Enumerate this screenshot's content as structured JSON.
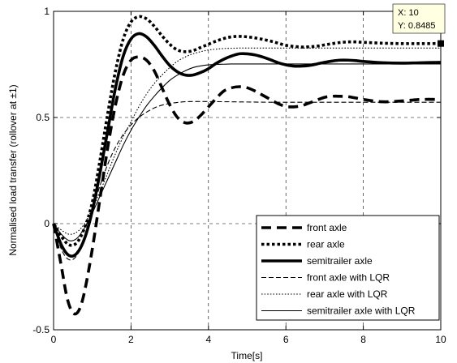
{
  "chart_data": {
    "type": "line",
    "title": "",
    "xlabel": "Time[s]",
    "ylabel": "Normalised load transfer (rollover at ±1)",
    "xlim": [
      0,
      10
    ],
    "ylim": [
      -0.5,
      1
    ],
    "xticks": [
      0,
      2,
      4,
      6,
      8,
      10
    ],
    "yticks": [
      -0.5,
      0,
      0.5,
      1
    ],
    "xtick_labels": [
      "0",
      "2",
      "4",
      "6",
      "8",
      "10"
    ],
    "ytick_labels": [
      "-0.5",
      "0",
      "0.5",
      "1"
    ],
    "grid": true,
    "legend_position": "bottom-right",
    "series": [
      {
        "name": "front axle",
        "style": "dashed",
        "weight": "thick",
        "color": "#000000",
        "x": [
          0,
          0.2,
          0.35,
          0.5,
          0.65,
          0.8,
          1.0,
          1.2,
          1.4,
          1.6,
          1.8,
          2.0,
          2.2,
          2.4,
          2.6,
          2.8,
          3.0,
          3.2,
          3.4,
          3.6,
          3.8,
          4.0,
          4.2,
          4.4,
          4.6,
          4.8,
          5.0,
          5.2,
          5.4,
          5.6,
          5.8,
          6.0,
          6.2,
          6.4,
          6.6,
          6.8,
          7.0,
          7.2,
          7.4,
          7.6,
          7.8,
          8.0,
          8.5,
          9.0,
          9.5,
          10.0
        ],
        "y": [
          0,
          -0.2,
          -0.35,
          -0.42,
          -0.41,
          -0.32,
          -0.12,
          0.12,
          0.36,
          0.56,
          0.7,
          0.77,
          0.785,
          0.77,
          0.72,
          0.64,
          0.56,
          0.5,
          0.475,
          0.48,
          0.51,
          0.55,
          0.59,
          0.625,
          0.64,
          0.645,
          0.64,
          0.625,
          0.605,
          0.585,
          0.565,
          0.552,
          0.55,
          0.555,
          0.568,
          0.582,
          0.595,
          0.6,
          0.6,
          0.598,
          0.592,
          0.585,
          0.574,
          0.578,
          0.585,
          0.585
        ]
      },
      {
        "name": "rear axle",
        "style": "dotted",
        "weight": "thick",
        "color": "#000000",
        "x": [
          0,
          0.2,
          0.4,
          0.6,
          0.8,
          1.0,
          1.2,
          1.4,
          1.6,
          1.8,
          2.0,
          2.2,
          2.4,
          2.6,
          2.8,
          3.0,
          3.2,
          3.4,
          3.6,
          3.8,
          4.0,
          4.2,
          4.4,
          4.6,
          4.8,
          5.0,
          5.2,
          5.4,
          5.6,
          5.8,
          6.0,
          6.2,
          6.4,
          6.6,
          6.8,
          7.0,
          7.2,
          7.4,
          7.6,
          7.8,
          8.0,
          8.5,
          9.0,
          9.5,
          10.0
        ],
        "y": [
          0,
          -0.06,
          -0.1,
          -0.09,
          -0.02,
          0.1,
          0.3,
          0.52,
          0.72,
          0.87,
          0.95,
          0.975,
          0.965,
          0.93,
          0.885,
          0.845,
          0.818,
          0.81,
          0.815,
          0.83,
          0.845,
          0.86,
          0.872,
          0.88,
          0.882,
          0.88,
          0.875,
          0.868,
          0.86,
          0.85,
          0.84,
          0.835,
          0.832,
          0.833,
          0.836,
          0.842,
          0.848,
          0.853,
          0.856,
          0.856,
          0.854,
          0.85,
          0.848,
          0.848,
          0.8485
        ]
      },
      {
        "name": "semitrailer axle",
        "style": "solid",
        "weight": "thick",
        "color": "#000000",
        "x": [
          0,
          0.2,
          0.4,
          0.6,
          0.8,
          1.0,
          1.2,
          1.4,
          1.6,
          1.8,
          2.0,
          2.2,
          2.4,
          2.6,
          2.8,
          3.0,
          3.2,
          3.4,
          3.6,
          3.8,
          4.0,
          4.2,
          4.4,
          4.6,
          4.8,
          5.0,
          5.2,
          5.4,
          5.6,
          5.8,
          6.0,
          6.2,
          6.4,
          6.6,
          6.8,
          7.0,
          7.2,
          7.4,
          7.6,
          7.8,
          8.0,
          8.5,
          9.0,
          9.5,
          10.0
        ],
        "y": [
          0,
          -0.1,
          -0.15,
          -0.14,
          -0.07,
          0.06,
          0.24,
          0.44,
          0.64,
          0.79,
          0.87,
          0.895,
          0.88,
          0.84,
          0.79,
          0.745,
          0.715,
          0.7,
          0.7,
          0.712,
          0.73,
          0.755,
          0.775,
          0.79,
          0.8,
          0.8,
          0.795,
          0.785,
          0.772,
          0.758,
          0.748,
          0.742,
          0.742,
          0.745,
          0.752,
          0.76,
          0.766,
          0.77,
          0.77,
          0.768,
          0.764,
          0.758,
          0.756,
          0.758,
          0.76
        ]
      },
      {
        "name": "front axle with LQR",
        "style": "dashed",
        "weight": "thin",
        "color": "#000000",
        "x": [
          0,
          0.2,
          0.4,
          0.6,
          0.8,
          1.0,
          1.2,
          1.4,
          1.6,
          1.8,
          2.0,
          2.2,
          2.4,
          2.6,
          2.8,
          3.0,
          3.2,
          3.4,
          3.6,
          3.8,
          4.0,
          4.5,
          5.0,
          5.5,
          6.0,
          7.0,
          8.0,
          9.0,
          10.0
        ],
        "y": [
          0,
          -0.12,
          -0.17,
          -0.15,
          -0.06,
          0.06,
          0.18,
          0.28,
          0.36,
          0.42,
          0.465,
          0.5,
          0.525,
          0.545,
          0.558,
          0.566,
          0.571,
          0.574,
          0.575,
          0.575,
          0.575,
          0.574,
          0.573,
          0.572,
          0.572,
          0.572,
          0.572,
          0.572,
          0.572
        ]
      },
      {
        "name": "rear axle with LQR",
        "style": "dotted",
        "weight": "thin",
        "color": "#000000",
        "x": [
          0,
          0.2,
          0.4,
          0.6,
          0.8,
          1.0,
          1.2,
          1.4,
          1.6,
          1.8,
          2.0,
          2.2,
          2.4,
          2.6,
          2.8,
          3.0,
          3.2,
          3.4,
          3.6,
          3.8,
          4.0,
          4.2,
          4.4,
          4.6,
          4.8,
          5.0,
          5.5,
          6.0,
          7.0,
          8.0,
          9.0,
          10.0
        ],
        "y": [
          0,
          -0.03,
          -0.05,
          -0.04,
          0.0,
          0.07,
          0.15,
          0.24,
          0.33,
          0.41,
          0.48,
          0.55,
          0.61,
          0.66,
          0.7,
          0.735,
          0.765,
          0.785,
          0.8,
          0.81,
          0.818,
          0.822,
          0.825,
          0.826,
          0.827,
          0.827,
          0.827,
          0.827,
          0.827,
          0.827,
          0.827,
          0.827
        ]
      },
      {
        "name": "semitrailer axle with LQR",
        "style": "solid",
        "weight": "thin",
        "color": "#000000",
        "x": [
          0,
          0.2,
          0.4,
          0.6,
          0.8,
          1.0,
          1.2,
          1.4,
          1.6,
          1.8,
          2.0,
          2.2,
          2.4,
          2.6,
          2.8,
          3.0,
          3.2,
          3.4,
          3.6,
          3.8,
          4.0,
          4.2,
          4.4,
          4.6,
          4.8,
          5.0,
          5.5,
          6.0,
          7.0,
          8.0,
          9.0,
          10.0
        ],
        "y": [
          0,
          -0.05,
          -0.08,
          -0.07,
          -0.02,
          0.05,
          0.13,
          0.21,
          0.29,
          0.37,
          0.44,
          0.5,
          0.555,
          0.6,
          0.64,
          0.675,
          0.7,
          0.72,
          0.735,
          0.743,
          0.748,
          0.75,
          0.751,
          0.752,
          0.752,
          0.752,
          0.752,
          0.752,
          0.752,
          0.752,
          0.752,
          0.752
        ]
      }
    ],
    "datatip": {
      "x_text": "X: 10",
      "y_text": "Y: 0.8485",
      "x": 10,
      "y": 0.8485
    }
  }
}
